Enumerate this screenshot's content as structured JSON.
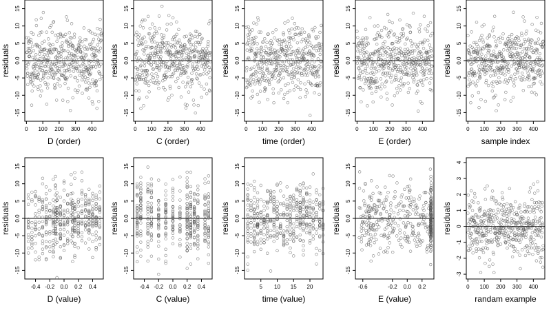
{
  "figure": {
    "title": "",
    "zero_line": 0
  },
  "chart_data": [
    {
      "type": "scatter",
      "xlabel": "D (order)",
      "ylabel": "residuals",
      "xlim": [
        -10,
        470
      ],
      "ylim": [
        -17.5,
        17.5
      ],
      "xticks": [
        0,
        100,
        200,
        300,
        400
      ],
      "yticks": [
        -15,
        -10,
        -5,
        0,
        5,
        10,
        15
      ],
      "ytick_labels": [
        "-15",
        "-10",
        "-5",
        "0.0",
        "5",
        "10",
        "15"
      ],
      "x_generator": {
        "kind": "order",
        "n": 460,
        "min": 0,
        "max": 460
      },
      "seed": 11,
      "y_sd": 6.0
    },
    {
      "type": "scatter",
      "xlabel": "C (order)",
      "ylabel": "residuals",
      "xlim": [
        -10,
        470
      ],
      "ylim": [
        -17.5,
        17.5
      ],
      "xticks": [
        0,
        100,
        200,
        300,
        400
      ],
      "yticks": [
        -15,
        -10,
        -5,
        0,
        5,
        10,
        15
      ],
      "ytick_labels": [
        "-15",
        "-10",
        "-5",
        "0.0",
        "5",
        "10",
        "15"
      ],
      "x_generator": {
        "kind": "order",
        "n": 460,
        "min": 0,
        "max": 460
      },
      "seed": 23,
      "y_sd": 6.0
    },
    {
      "type": "scatter",
      "xlabel": "time (order)",
      "ylabel": "residuals",
      "xlim": [
        -10,
        470
      ],
      "ylim": [
        -17.5,
        17.5
      ],
      "xticks": [
        0,
        100,
        200,
        300,
        400
      ],
      "yticks": [
        -15,
        -10,
        -5,
        0,
        5,
        10,
        15
      ],
      "ytick_labels": [
        "-15",
        "-10",
        "-5",
        "0.0",
        "5",
        "10",
        "15"
      ],
      "x_generator": {
        "kind": "order",
        "n": 460,
        "min": 0,
        "max": 460
      },
      "seed": 37,
      "y_sd": 6.0
    },
    {
      "type": "scatter",
      "xlabel": "E (order)",
      "ylabel": "residuals",
      "xlim": [
        -10,
        470
      ],
      "ylim": [
        -17.5,
        17.5
      ],
      "xticks": [
        0,
        100,
        200,
        300,
        400
      ],
      "yticks": [
        -15,
        -10,
        -5,
        0,
        5,
        10,
        15
      ],
      "ytick_labels": [
        "-15",
        "-10",
        "-5",
        "0.0",
        "5",
        "10",
        "15"
      ],
      "x_generator": {
        "kind": "order",
        "n": 460,
        "min": 0,
        "max": 460
      },
      "seed": 41,
      "y_sd": 6.0
    },
    {
      "type": "scatter",
      "xlabel": "sample index",
      "ylabel": "residuals",
      "xlim": [
        -10,
        470
      ],
      "ylim": [
        -17.5,
        17.5
      ],
      "xticks": [
        0,
        100,
        200,
        300,
        400
      ],
      "yticks": [
        -15,
        -10,
        -5,
        0,
        5,
        10,
        15
      ],
      "ytick_labels": [
        "-15",
        "-10",
        "-5",
        "0.0",
        "5",
        "10",
        "15"
      ],
      "x_generator": {
        "kind": "order",
        "n": 460,
        "min": 0,
        "max": 460
      },
      "seed": 53,
      "y_sd": 6.0
    },
    {
      "type": "scatter",
      "xlabel": "D (value)",
      "ylabel": "residuals",
      "xlim": [
        -0.55,
        0.55
      ],
      "ylim": [
        -17.5,
        17.5
      ],
      "xticks": [
        -0.4,
        -0.2,
        0.0,
        0.2,
        0.4
      ],
      "xtick_labels": [
        "-0.4",
        "-0.2",
        "0.0",
        "0.2",
        "0.4"
      ],
      "yticks": [
        -15,
        -10,
        -5,
        0,
        5,
        10,
        15
      ],
      "ytick_labels": [
        "-15",
        "-10",
        "-5",
        "0.0",
        "5",
        "10",
        "15"
      ],
      "x_generator": {
        "kind": "levels",
        "n": 460,
        "levels": [
          -0.5,
          -0.45,
          -0.4,
          -0.35,
          -0.3,
          -0.25,
          -0.2,
          -0.15,
          -0.12,
          -0.1,
          -0.05,
          0.0,
          0.05,
          0.1,
          0.12,
          0.15,
          0.2,
          0.25,
          0.3,
          0.35,
          0.4,
          0.45,
          0.5
        ]
      },
      "seed": 61,
      "y_sd": 6.0
    },
    {
      "type": "scatter",
      "xlabel": "C (value)",
      "ylabel": "residuals",
      "xlim": [
        -0.55,
        0.55
      ],
      "ylim": [
        -17.5,
        17.5
      ],
      "xticks": [
        -0.4,
        -0.2,
        0.0,
        0.2,
        0.4
      ],
      "xtick_labels": [
        "-0.4",
        "-0.2",
        "0.0",
        "0.2",
        "0.4"
      ],
      "yticks": [
        -15,
        -10,
        -5,
        0,
        5,
        10,
        15
      ],
      "ytick_labels": [
        "-15",
        "-10",
        "-5",
        "0.0",
        "5",
        "10",
        "15"
      ],
      "x_generator": {
        "kind": "levels",
        "n": 460,
        "levels": [
          -0.5,
          -0.45,
          -0.35,
          -0.3,
          -0.2,
          -0.1,
          0.0,
          0.1,
          0.2,
          0.25,
          0.3,
          0.35,
          0.45,
          0.5
        ]
      },
      "seed": 71,
      "y_sd": 6.0
    },
    {
      "type": "scatter",
      "xlabel": "time (value)",
      "ylabel": "residuals",
      "xlim": [
        0,
        24
      ],
      "ylim": [
        -17.5,
        17.5
      ],
      "xticks": [
        5,
        10,
        15,
        20
      ],
      "xtick_labels": [
        "5",
        "10",
        "15",
        "20"
      ],
      "yticks": [
        -15,
        -10,
        -5,
        0,
        5,
        10,
        15
      ],
      "ytick_labels": [
        "-15",
        "-10",
        "-5",
        "0.0",
        "5",
        "10",
        "15"
      ],
      "x_generator": {
        "kind": "levels",
        "n": 460,
        "levels": [
          1,
          2,
          3,
          4,
          5,
          6,
          7,
          8,
          9,
          10,
          11,
          12,
          13,
          14,
          15,
          16,
          17,
          18,
          19,
          20,
          21,
          22,
          23,
          24
        ]
      },
      "seed": 83,
      "y_sd": 6.0
    },
    {
      "type": "scatter",
      "xlabel": "E (value)",
      "ylabel": "residuals",
      "xlim": [
        -0.7,
        0.36
      ],
      "ylim": [
        -17.5,
        17.5
      ],
      "xticks": [
        -0.6,
        -0.2,
        0.0,
        0.2
      ],
      "xtick_labels": [
        "-0.6",
        "-0.2",
        "0.0",
        "0.2"
      ],
      "yticks": [
        -15,
        -10,
        -5,
        0,
        5,
        10,
        15
      ],
      "ytick_labels": [
        "-15",
        "-10",
        "-5",
        "0.0",
        "5",
        "10",
        "15"
      ],
      "x_generator": {
        "kind": "heavy_right",
        "n": 460,
        "min": -0.65,
        "max": 0.33,
        "cluster": 0.32,
        "cluster_frac": 0.35
      },
      "seed": 97,
      "y_sd": 6.0
    },
    {
      "type": "scatter",
      "xlabel": "randam example",
      "ylabel": "residuals",
      "xlim": [
        -10,
        470
      ],
      "ylim": [
        -3.3,
        4.3
      ],
      "xticks": [
        0,
        100,
        200,
        300,
        400
      ],
      "yticks": [
        -3,
        -2,
        -1,
        0,
        1,
        2,
        3,
        4
      ],
      "ytick_labels": [
        "-3",
        "-2",
        "-1",
        "0",
        "1",
        "2",
        "3",
        "4"
      ],
      "x_generator": {
        "kind": "order",
        "n": 460,
        "min": 0,
        "max": 460
      },
      "seed": 109,
      "y_sd": 1.2
    }
  ]
}
